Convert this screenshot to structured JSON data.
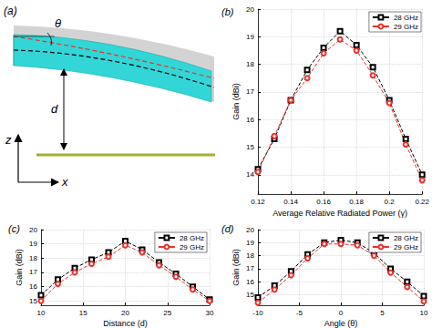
{
  "diagram": {
    "panel_label": "(a)",
    "labels": {
      "angle": "θ",
      "z_axis": "z",
      "height": "d",
      "x_axis": "x"
    }
  },
  "chart_data": [
    {
      "type": "line",
      "title": "(b)",
      "x_label": "Average Relative Radiated Power (γ)",
      "y_label": "Gain (dBi)",
      "x": [
        0.12,
        0.13,
        0.14,
        0.15,
        0.16,
        0.17,
        0.18,
        0.19,
        0.2,
        0.21,
        0.22
      ],
      "series": [
        {
          "name": "28 GHz",
          "color": "#000000",
          "marker": "square",
          "line_style": "dashed",
          "values": [
            14.2,
            15.3,
            16.7,
            17.8,
            18.6,
            19.2,
            18.7,
            17.9,
            16.7,
            15.3,
            14.0
          ]
        },
        {
          "name": "29 GHz",
          "color": "#e8312a",
          "marker": "circle",
          "line_style": "dashed",
          "values": [
            14.1,
            15.4,
            16.7,
            17.5,
            18.4,
            18.9,
            18.5,
            17.6,
            16.6,
            15.1,
            13.8
          ]
        }
      ],
      "xlim": [
        0.12,
        0.22
      ],
      "xticks": [
        0.12,
        0.14,
        0.16,
        0.18,
        0.2,
        0.22
      ],
      "ylim": [
        13.3,
        20
      ],
      "yticks": [
        14,
        15,
        16,
        17,
        18,
        19,
        20
      ],
      "grid": true,
      "legend": "upper right"
    },
    {
      "type": "line",
      "title": "(c)",
      "x_label": "Distance (d)",
      "y_label": "Gain (dBi)",
      "x": [
        10,
        12,
        14,
        16,
        18,
        20,
        22,
        24,
        26,
        28,
        30
      ],
      "series": [
        {
          "name": "28 GHz",
          "color": "#000000",
          "marker": "square",
          "line_style": "dashed",
          "values": [
            15.4,
            16.5,
            17.3,
            17.9,
            18.4,
            19.2,
            18.6,
            17.7,
            16.9,
            16.0,
            15.1
          ]
        },
        {
          "name": "29 GHz",
          "color": "#e8312a",
          "marker": "circle",
          "line_style": "dashed",
          "values": [
            15.0,
            16.2,
            17.0,
            17.6,
            18.1,
            18.9,
            18.4,
            17.5,
            16.7,
            15.8,
            15.0
          ]
        }
      ],
      "xlim": [
        10,
        30
      ],
      "xticks": [
        10,
        15,
        20,
        25,
        30
      ],
      "ylim": [
        14.7,
        20
      ],
      "yticks": [
        15,
        16,
        17,
        18,
        19,
        20
      ],
      "grid": true,
      "legend": "upper right"
    },
    {
      "type": "line",
      "title": "(d)",
      "x_label": "Angle (θ)",
      "y_label": "Gain (dBi)",
      "x": [
        -10,
        -8,
        -6,
        -4,
        -2,
        0,
        2,
        4,
        6,
        8,
        10
      ],
      "series": [
        {
          "name": "28 GHz",
          "color": "#000000",
          "marker": "square",
          "line_style": "dashed",
          "values": [
            14.8,
            15.7,
            16.8,
            18.1,
            19.0,
            19.2,
            19.0,
            18.2,
            17.0,
            16.0,
            14.9
          ]
        },
        {
          "name": "29 GHz",
          "color": "#e8312a",
          "marker": "circle",
          "line_style": "dashed",
          "values": [
            14.4,
            15.4,
            16.5,
            17.8,
            18.9,
            18.9,
            18.8,
            18.0,
            16.7,
            15.6,
            14.5
          ]
        }
      ],
      "xlim": [
        -10,
        10
      ],
      "xticks": [
        -10,
        -5,
        0,
        5,
        10
      ],
      "ylim": [
        14.2,
        20
      ],
      "yticks": [
        15,
        16,
        17,
        18,
        19,
        20
      ],
      "grid": true,
      "legend": "upper right"
    }
  ]
}
